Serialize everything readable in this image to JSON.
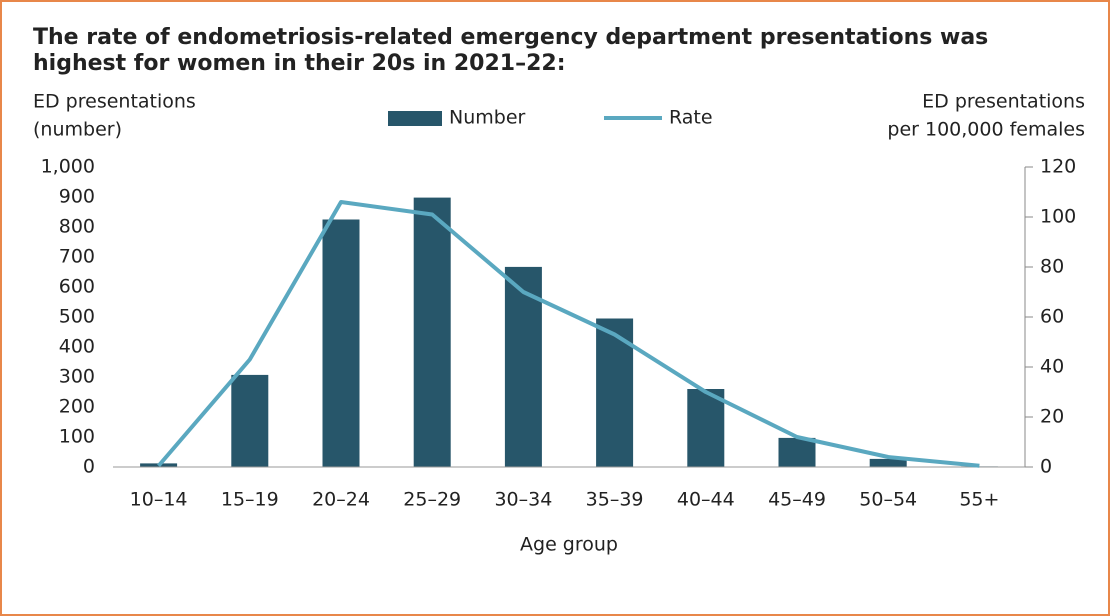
{
  "chart_data": {
    "type": "bar_line",
    "title": [
      "The rate of endometriosis-related emergency department presentations was",
      "highest for women in their 20s in 2021–22:"
    ],
    "y_label": [
      "ED presentations",
      "(number)"
    ],
    "y2_label": [
      "ED presentations",
      "per 100,000 females"
    ],
    "x_label": "Age group",
    "categories": [
      "10–14",
      "15–19",
      "20–24",
      "25–29",
      "30–34",
      "35–39",
      "40–44",
      "45–49",
      "50–54",
      "55+"
    ],
    "series": [
      {
        "name": "Number",
        "type": "bar",
        "color": "#27566a",
        "values": [
          12,
          307,
          825,
          898,
          667,
          495,
          260,
          97,
          27,
          2
        ]
      },
      {
        "name": "Rate",
        "type": "line",
        "axis": "y2",
        "color": "#5aa8c0",
        "values": [
          0.5,
          43,
          106,
          101,
          70,
          53,
          30,
          12,
          4,
          0.5
        ]
      }
    ],
    "ylim": [
      0,
      1000
    ],
    "yticks": [
      0,
      100,
      200,
      300,
      400,
      500,
      600,
      700,
      800,
      900,
      {
        "value": 1000,
        "label": "1,000"
      }
    ],
    "y2lim": [
      0,
      120
    ],
    "y2ticks": [
      0,
      20,
      40,
      60,
      80,
      100,
      120
    ]
  }
}
